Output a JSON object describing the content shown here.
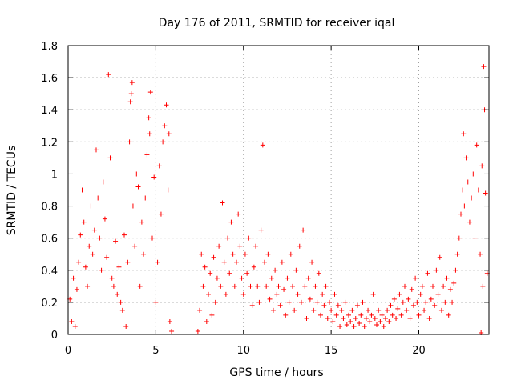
{
  "chart_data": {
    "type": "scatter",
    "title": "Day 176 of 2011, SRMTID for receiver iqal",
    "xlabel": "GPS time / hours",
    "ylabel": "SRMTID / TECUs",
    "xlim": [
      0,
      24
    ],
    "ylim": [
      0,
      1.8
    ],
    "xticks": [
      0,
      5,
      10,
      15,
      20
    ],
    "yticks": [
      0,
      0.2,
      0.4,
      0.6,
      0.8,
      1,
      1.2,
      1.4,
      1.6,
      1.8
    ],
    "xtick_labels": [
      "0",
      "5",
      "10",
      "15",
      "20"
    ],
    "ytick_labels": [
      "0",
      "0.2",
      "0.4",
      "0.6",
      "0.8",
      "1",
      "1.2",
      "1.4",
      "1.6",
      "1.8"
    ],
    "grid": true,
    "marker": "+",
    "color": "#ff0000",
    "series": [
      {
        "name": "SRMTID",
        "points": [
          [
            0.1,
            0.22
          ],
          [
            0.2,
            0.08
          ],
          [
            0.3,
            0.35
          ],
          [
            0.4,
            0.05
          ],
          [
            0.5,
            0.28
          ],
          [
            0.6,
            0.45
          ],
          [
            0.7,
            0.62
          ],
          [
            0.8,
            0.9
          ],
          [
            0.9,
            0.7
          ],
          [
            1.0,
            0.42
          ],
          [
            1.1,
            0.3
          ],
          [
            1.2,
            0.55
          ],
          [
            1.3,
            0.8
          ],
          [
            1.4,
            0.5
          ],
          [
            1.5,
            0.65
          ],
          [
            1.6,
            1.15
          ],
          [
            1.7,
            0.85
          ],
          [
            1.8,
            0.6
          ],
          [
            1.9,
            0.4
          ],
          [
            2.0,
            0.95
          ],
          [
            2.1,
            0.72
          ],
          [
            2.2,
            0.48
          ],
          [
            2.3,
            1.62
          ],
          [
            2.4,
            1.1
          ],
          [
            2.5,
            0.35
          ],
          [
            2.6,
            0.3
          ],
          [
            2.7,
            0.58
          ],
          [
            2.8,
            0.25
          ],
          [
            2.9,
            0.42
          ],
          [
            3.0,
            0.2
          ],
          [
            3.1,
            0.15
          ],
          [
            3.2,
            0.62
          ],
          [
            3.3,
            0.05
          ],
          [
            3.4,
            0.45
          ],
          [
            3.5,
            1.2
          ],
          [
            3.55,
            1.45
          ],
          [
            3.6,
            1.5
          ],
          [
            3.65,
            1.57
          ],
          [
            3.7,
            0.8
          ],
          [
            3.8,
            0.55
          ],
          [
            3.9,
            1.0
          ],
          [
            4.0,
            0.92
          ],
          [
            4.1,
            0.3
          ],
          [
            4.2,
            0.7
          ],
          [
            4.3,
            0.5
          ],
          [
            4.4,
            0.85
          ],
          [
            4.5,
            1.12
          ],
          [
            4.6,
            1.35
          ],
          [
            4.65,
            1.25
          ],
          [
            4.7,
            1.51
          ],
          [
            4.8,
            0.6
          ],
          [
            4.9,
            0.98
          ],
          [
            5.0,
            0.2
          ],
          [
            5.1,
            0.45
          ],
          [
            5.2,
            1.05
          ],
          [
            5.3,
            0.75
          ],
          [
            5.4,
            1.2
          ],
          [
            5.5,
            1.3
          ],
          [
            5.6,
            1.43
          ],
          [
            5.7,
            0.9
          ],
          [
            5.75,
            1.25
          ],
          [
            5.8,
            0.08
          ],
          [
            5.9,
            0.02
          ],
          [
            7.4,
            0.02
          ],
          [
            7.5,
            0.15
          ],
          [
            7.6,
            0.5
          ],
          [
            7.7,
            0.3
          ],
          [
            7.8,
            0.42
          ],
          [
            7.9,
            0.08
          ],
          [
            8.0,
            0.25
          ],
          [
            8.1,
            0.38
          ],
          [
            8.2,
            0.12
          ],
          [
            8.3,
            0.48
          ],
          [
            8.4,
            0.2
          ],
          [
            8.5,
            0.35
          ],
          [
            8.6,
            0.55
          ],
          [
            8.7,
            0.3
          ],
          [
            8.8,
            0.82
          ],
          [
            8.9,
            0.45
          ],
          [
            9.0,
            0.25
          ],
          [
            9.1,
            0.6
          ],
          [
            9.2,
            0.38
          ],
          [
            9.3,
            0.7
          ],
          [
            9.4,
            0.5
          ],
          [
            9.5,
            0.3
          ],
          [
            9.6,
            0.45
          ],
          [
            9.7,
            0.75
          ],
          [
            9.8,
            0.55
          ],
          [
            9.9,
            0.35
          ],
          [
            10.0,
            0.25
          ],
          [
            10.1,
            0.5
          ],
          [
            10.2,
            0.38
          ],
          [
            10.3,
            0.6
          ],
          [
            10.4,
            0.3
          ],
          [
            10.5,
            0.18
          ],
          [
            10.6,
            0.42
          ],
          [
            10.7,
            0.55
          ],
          [
            10.8,
            0.3
          ],
          [
            10.9,
            0.2
          ],
          [
            11.0,
            0.65
          ],
          [
            11.1,
            1.18
          ],
          [
            11.2,
            0.45
          ],
          [
            11.3,
            0.3
          ],
          [
            11.4,
            0.5
          ],
          [
            11.5,
            0.22
          ],
          [
            11.6,
            0.35
          ],
          [
            11.7,
            0.15
          ],
          [
            11.8,
            0.4
          ],
          [
            11.9,
            0.25
          ],
          [
            12.0,
            0.3
          ],
          [
            12.1,
            0.18
          ],
          [
            12.2,
            0.45
          ],
          [
            12.3,
            0.28
          ],
          [
            12.4,
            0.12
          ],
          [
            12.5,
            0.35
          ],
          [
            12.6,
            0.2
          ],
          [
            12.7,
            0.5
          ],
          [
            12.8,
            0.3
          ],
          [
            12.9,
            0.15
          ],
          [
            13.0,
            0.4
          ],
          [
            13.1,
            0.25
          ],
          [
            13.2,
            0.55
          ],
          [
            13.3,
            0.2
          ],
          [
            13.4,
            0.65
          ],
          [
            13.5,
            0.3
          ],
          [
            13.6,
            0.1
          ],
          [
            13.7,
            0.35
          ],
          [
            13.8,
            0.22
          ],
          [
            13.9,
            0.45
          ],
          [
            14.0,
            0.15
          ],
          [
            14.1,
            0.3
          ],
          [
            14.2,
            0.2
          ],
          [
            14.3,
            0.38
          ],
          [
            14.4,
            0.12
          ],
          [
            14.5,
            0.25
          ],
          [
            14.6,
            0.18
          ],
          [
            14.7,
            0.3
          ],
          [
            14.8,
            0.1
          ],
          [
            14.9,
            0.2
          ],
          [
            15.0,
            0.15
          ],
          [
            15.1,
            0.08
          ],
          [
            15.2,
            0.25
          ],
          [
            15.3,
            0.12
          ],
          [
            15.4,
            0.18
          ],
          [
            15.5,
            0.05
          ],
          [
            15.6,
            0.15
          ],
          [
            15.7,
            0.1
          ],
          [
            15.8,
            0.2
          ],
          [
            15.9,
            0.06
          ],
          [
            16.0,
            0.12
          ],
          [
            16.1,
            0.08
          ],
          [
            16.2,
            0.15
          ],
          [
            16.3,
            0.05
          ],
          [
            16.4,
            0.1
          ],
          [
            16.5,
            0.18
          ],
          [
            16.6,
            0.07
          ],
          [
            16.7,
            0.12
          ],
          [
            16.8,
            0.2
          ],
          [
            16.9,
            0.05
          ],
          [
            17.0,
            0.1
          ],
          [
            17.1,
            0.15
          ],
          [
            17.2,
            0.08
          ],
          [
            17.3,
            0.12
          ],
          [
            17.4,
            0.25
          ],
          [
            17.5,
            0.1
          ],
          [
            17.6,
            0.06
          ],
          [
            17.7,
            0.15
          ],
          [
            17.8,
            0.08
          ],
          [
            17.9,
            0.12
          ],
          [
            18.0,
            0.05
          ],
          [
            18.1,
            0.1
          ],
          [
            18.2,
            0.15
          ],
          [
            18.3,
            0.08
          ],
          [
            18.4,
            0.18
          ],
          [
            18.5,
            0.12
          ],
          [
            18.6,
            0.22
          ],
          [
            18.7,
            0.1
          ],
          [
            18.8,
            0.16
          ],
          [
            18.9,
            0.25
          ],
          [
            19.0,
            0.12
          ],
          [
            19.1,
            0.2
          ],
          [
            19.2,
            0.3
          ],
          [
            19.3,
            0.15
          ],
          [
            19.4,
            0.22
          ],
          [
            19.5,
            0.1
          ],
          [
            19.6,
            0.28
          ],
          [
            19.7,
            0.18
          ],
          [
            19.8,
            0.35
          ],
          [
            19.9,
            0.2
          ],
          [
            20.0,
            0.12
          ],
          [
            20.1,
            0.25
          ],
          [
            20.2,
            0.3
          ],
          [
            20.3,
            0.15
          ],
          [
            20.4,
            0.2
          ],
          [
            20.5,
            0.38
          ],
          [
            20.6,
            0.1
          ],
          [
            20.7,
            0.22
          ],
          [
            20.8,
            0.3
          ],
          [
            20.9,
            0.18
          ],
          [
            21.0,
            0.4
          ],
          [
            21.1,
            0.25
          ],
          [
            21.2,
            0.48
          ],
          [
            21.3,
            0.15
          ],
          [
            21.4,
            0.3
          ],
          [
            21.5,
            0.2
          ],
          [
            21.6,
            0.35
          ],
          [
            21.7,
            0.12
          ],
          [
            21.8,
            0.28
          ],
          [
            21.9,
            0.2
          ],
          [
            22.0,
            0.32
          ],
          [
            22.1,
            0.4
          ],
          [
            22.2,
            0.5
          ],
          [
            22.3,
            0.6
          ],
          [
            22.4,
            0.75
          ],
          [
            22.5,
            0.9
          ],
          [
            22.55,
            1.25
          ],
          [
            22.6,
            0.8
          ],
          [
            22.7,
            1.1
          ],
          [
            22.8,
            0.95
          ],
          [
            22.9,
            0.7
          ],
          [
            23.0,
            0.85
          ],
          [
            23.1,
            1.0
          ],
          [
            23.2,
            0.6
          ],
          [
            23.3,
            1.18
          ],
          [
            23.4,
            0.9
          ],
          [
            23.5,
            0.5
          ],
          [
            23.55,
            0.01
          ],
          [
            23.6,
            1.05
          ],
          [
            23.65,
            0.3
          ],
          [
            23.7,
            1.67
          ],
          [
            23.75,
            1.4
          ],
          [
            23.8,
            0.88
          ],
          [
            23.9,
            0.38
          ]
        ]
      }
    ]
  }
}
